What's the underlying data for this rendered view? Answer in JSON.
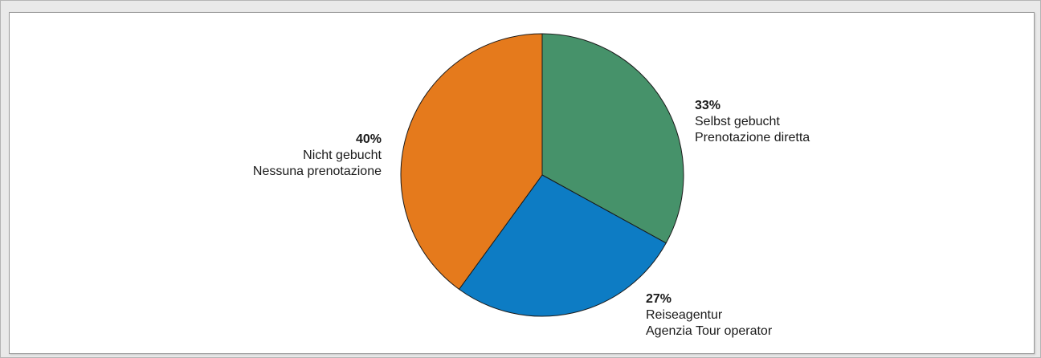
{
  "chart_data": {
    "type": "pie",
    "title": "",
    "slices": [
      {
        "percent_label": "33%",
        "value": 33,
        "labels": [
          "Selbst gebucht",
          "Prenotazione diretta"
        ],
        "color": "#46926a"
      },
      {
        "percent_label": "27%",
        "value": 27,
        "labels": [
          "Reiseagentur",
          "Agenzia Tour operator"
        ],
        "color": "#0d7cc4"
      },
      {
        "percent_label": "40%",
        "value": 40,
        "labels": [
          "Nicht gebucht",
          "Nessuna prenotazione"
        ],
        "color": "#e57a1c"
      }
    ]
  }
}
